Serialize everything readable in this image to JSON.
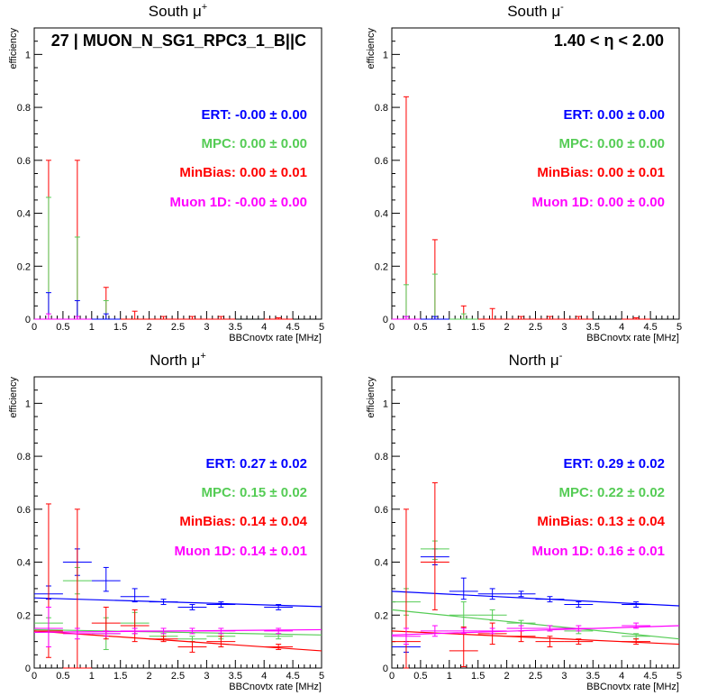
{
  "colors": {
    "ERT": "#0000ff",
    "MPC": "#55cc55",
    "MinBias": "#ff0000",
    "Muon 1D": "#ff00ff"
  },
  "chart_data": [
    {
      "type": "scatter",
      "title": "South μ⁺",
      "xlabel": "BBCnovtx rate [MHz]",
      "ylabel": "efficiency",
      "xlim": [
        0,
        5
      ],
      "ylim": [
        0,
        1.1
      ],
      "xticks": [
        "0",
        "0.5",
        "1",
        "1.5",
        "2",
        "2.5",
        "3",
        "3.5",
        "4",
        "4.5",
        "5"
      ],
      "yticks": [
        "0",
        "0.2",
        "0.4",
        "0.6",
        "0.8",
        "1"
      ],
      "annotation": "27 | MUON_N_SG1_RPC3_1_B||C",
      "fit_labels": [
        {
          "series": "ERT",
          "text": "ERT: -0.00 ± 0.00"
        },
        {
          "series": "MPC",
          "text": "MPC: 0.00 ± 0.00"
        },
        {
          "series": "MinBias",
          "text": "MinBias: 0.00 ± 0.01"
        },
        {
          "series": "Muon 1D",
          "text": "Muon 1D: -0.00 ± 0.00"
        }
      ],
      "series": [
        {
          "name": "MinBias",
          "points": [
            [
              0.25,
              0.0,
              0.0,
              0.6
            ],
            [
              0.75,
              0.0,
              0.0,
              0.6
            ],
            [
              1.25,
              0.0,
              0.0,
              0.12
            ],
            [
              1.75,
              0.0,
              0.0,
              0.03
            ],
            [
              2.25,
              0.0,
              0.0,
              0.01
            ],
            [
              2.75,
              0.0,
              0.0,
              0.01
            ],
            [
              3.25,
              0.0,
              0.0,
              0.01
            ],
            [
              4.25,
              0.0,
              0.0,
              0.005
            ]
          ]
        },
        {
          "name": "MPC",
          "points": [
            [
              0.25,
              0.0,
              0.0,
              0.46
            ],
            [
              0.75,
              0.0,
              0.0,
              0.31
            ],
            [
              1.25,
              0.0,
              0.0,
              0.07
            ]
          ]
        },
        {
          "name": "ERT",
          "points": [
            [
              0.25,
              0.0,
              0.0,
              0.1
            ],
            [
              0.75,
              0.0,
              0.0,
              0.07
            ],
            [
              1.25,
              0.0,
              0.0,
              0.02
            ]
          ]
        },
        {
          "name": "Muon 1D",
          "points": [
            [
              0.25,
              0.0,
              0.0,
              0.02
            ],
            [
              0.75,
              0.0,
              0.0,
              0.01
            ]
          ]
        }
      ]
    },
    {
      "type": "scatter",
      "title": "South μ⁻",
      "xlabel": "BBCnovtx rate [MHz]",
      "ylabel": "efficiency",
      "xlim": [
        0,
        5
      ],
      "ylim": [
        0,
        1.1
      ],
      "xticks": [
        "0",
        "0.5",
        "1",
        "1.5",
        "2",
        "2.5",
        "3",
        "3.5",
        "4",
        "4.5",
        "5"
      ],
      "yticks": [
        "0",
        "0.2",
        "0.4",
        "0.6",
        "0.8",
        "1"
      ],
      "annotation": "1.40 < η < 2.00",
      "fit_labels": [
        {
          "series": "ERT",
          "text": "ERT: 0.00 ± 0.00"
        },
        {
          "series": "MPC",
          "text": "MPC: 0.00 ± 0.00"
        },
        {
          "series": "MinBias",
          "text": "MinBias: 0.00 ± 0.01"
        },
        {
          "series": "Muon 1D",
          "text": "Muon 1D: 0.00 ± 0.00"
        }
      ],
      "series": [
        {
          "name": "MinBias",
          "points": [
            [
              0.25,
              0.0,
              0.0,
              0.84
            ],
            [
              0.75,
              0.0,
              0.0,
              0.3
            ],
            [
              1.25,
              0.0,
              0.0,
              0.05
            ],
            [
              1.75,
              0.0,
              0.0,
              0.04
            ],
            [
              2.25,
              0.0,
              0.0,
              0.01
            ],
            [
              2.75,
              0.0,
              0.0,
              0.01
            ],
            [
              3.25,
              0.0,
              0.0,
              0.01
            ],
            [
              4.25,
              0.0,
              0.0,
              0.005
            ]
          ]
        },
        {
          "name": "MPC",
          "points": [
            [
              0.25,
              0.0,
              0.0,
              0.13
            ],
            [
              0.75,
              0.0,
              0.0,
              0.17
            ],
            [
              1.25,
              0.0,
              0.0,
              0.02
            ]
          ]
        },
        {
          "name": "ERT",
          "points": [
            [
              0.25,
              0.0,
              0.0,
              0.01
            ],
            [
              0.75,
              0.0,
              0.0,
              0.01
            ]
          ]
        },
        {
          "name": "Muon 1D",
          "points": [
            [
              0.25,
              0.0,
              0.0,
              0.01
            ]
          ]
        }
      ]
    },
    {
      "type": "scatter",
      "title": "North μ⁺",
      "xlabel": "BBCnovtx rate [MHz]",
      "ylabel": "efficiency",
      "xlim": [
        0,
        5
      ],
      "ylim": [
        0,
        1.1
      ],
      "xticks": [
        "0",
        "0.5",
        "1",
        "1.5",
        "2",
        "2.5",
        "3",
        "3.5",
        "4",
        "4.5",
        "5"
      ],
      "yticks": [
        "0",
        "0.2",
        "0.4",
        "0.6",
        "0.8",
        "1"
      ],
      "annotation": "",
      "fit_labels": [
        {
          "series": "ERT",
          "text": "ERT: 0.27 ± 0.02"
        },
        {
          "series": "MPC",
          "text": "MPC: 0.15 ± 0.02"
        },
        {
          "series": "MinBias",
          "text": "MinBias: 0.14 ± 0.04"
        },
        {
          "series": "Muon 1D",
          "text": "Muon 1D: 0.14 ± 0.01"
        }
      ],
      "fit_lines": [
        {
          "series": "ERT",
          "y0": 0.265,
          "y1": 0.232
        },
        {
          "series": "MPC",
          "y0": 0.145,
          "y1": 0.125
        },
        {
          "series": "MinBias",
          "y0": 0.14,
          "y1": 0.065
        },
        {
          "series": "Muon 1D",
          "y0": 0.135,
          "y1": 0.145
        }
      ],
      "series": [
        {
          "name": "ERT",
          "points": [
            [
              0.25,
              0.28,
              0.02,
              0.03
            ],
            [
              0.75,
              0.4,
              0.05,
              0.05
            ],
            [
              1.25,
              0.33,
              0.04,
              0.05
            ],
            [
              1.75,
              0.27,
              0.02,
              0.03
            ],
            [
              2.25,
              0.25,
              0.01,
              0.01
            ],
            [
              2.75,
              0.23,
              0.01,
              0.01
            ],
            [
              3.25,
              0.24,
              0.01,
              0.01
            ],
            [
              4.25,
              0.23,
              0.01,
              0.01
            ]
          ]
        },
        {
          "name": "MPC",
          "points": [
            [
              0.25,
              0.17,
              0.02,
              0.02
            ],
            [
              0.75,
              0.33,
              0.05,
              0.05
            ],
            [
              1.25,
              0.13,
              0.06,
              0.06
            ],
            [
              1.75,
              0.17,
              0.04,
              0.04
            ],
            [
              2.25,
              0.12,
              0.01,
              0.01
            ],
            [
              2.75,
              0.11,
              0.01,
              0.01
            ],
            [
              3.25,
              0.12,
              0.01,
              0.01
            ],
            [
              4.25,
              0.12,
              0.01,
              0.01
            ]
          ]
        },
        {
          "name": "MinBias",
          "points": [
            [
              0.25,
              0.14,
              0.1,
              0.48
            ],
            [
              0.75,
              0.0,
              0.0,
              0.6
            ],
            [
              1.25,
              0.17,
              0.06,
              0.06
            ],
            [
              1.75,
              0.16,
              0.06,
              0.06
            ],
            [
              2.25,
              0.11,
              0.01,
              0.01
            ],
            [
              2.75,
              0.08,
              0.02,
              0.02
            ],
            [
              3.25,
              0.1,
              0.02,
              0.02
            ],
            [
              4.25,
              0.08,
              0.01,
              0.01
            ]
          ]
        },
        {
          "name": "Muon 1D",
          "points": [
            [
              0.25,
              0.15,
              0.07,
              0.08
            ],
            [
              0.75,
              0.13,
              0.02,
              0.02
            ],
            [
              1.25,
              0.13,
              0.01,
              0.01
            ],
            [
              1.75,
              0.14,
              0.01,
              0.01
            ],
            [
              2.25,
              0.14,
              0.01,
              0.01
            ],
            [
              2.75,
              0.14,
              0.01,
              0.01
            ],
            [
              3.25,
              0.14,
              0.01,
              0.01
            ],
            [
              4.25,
              0.14,
              0.01,
              0.01
            ]
          ]
        }
      ]
    },
    {
      "type": "scatter",
      "title": "North μ⁻",
      "xlabel": "BBCnovtx rate [MHz]",
      "ylabel": "efficiency",
      "xlim": [
        0,
        5
      ],
      "ylim": [
        0,
        1.1
      ],
      "xticks": [
        "0",
        "0.5",
        "1",
        "1.5",
        "2",
        "2.5",
        "3",
        "3.5",
        "4",
        "4.5",
        "5"
      ],
      "yticks": [
        "0",
        "0.2",
        "0.4",
        "0.6",
        "0.8",
        "1"
      ],
      "annotation": "",
      "fit_labels": [
        {
          "series": "ERT",
          "text": "ERT: 0.29 ± 0.02"
        },
        {
          "series": "MPC",
          "text": "MPC: 0.22 ± 0.02"
        },
        {
          "series": "MinBias",
          "text": "MinBias: 0.13 ± 0.04"
        },
        {
          "series": "Muon 1D",
          "text": "Muon 1D: 0.16 ± 0.01"
        }
      ],
      "fit_lines": [
        {
          "series": "ERT",
          "y0": 0.29,
          "y1": 0.235
        },
        {
          "series": "MPC",
          "y0": 0.22,
          "y1": 0.11
        },
        {
          "series": "MinBias",
          "y0": 0.14,
          "y1": 0.09
        },
        {
          "series": "Muon 1D",
          "y0": 0.125,
          "y1": 0.16
        }
      ],
      "series": [
        {
          "name": "ERT",
          "points": [
            [
              0.25,
              0.08,
              0.02,
              0.02
            ],
            [
              0.75,
              0.42,
              0.03,
              0.03
            ],
            [
              1.25,
              0.29,
              0.03,
              0.05
            ],
            [
              1.75,
              0.28,
              0.02,
              0.02
            ],
            [
              2.25,
              0.28,
              0.01,
              0.01
            ],
            [
              2.75,
              0.26,
              0.01,
              0.01
            ],
            [
              3.25,
              0.24,
              0.01,
              0.01
            ],
            [
              4.25,
              0.24,
              0.01,
              0.01
            ]
          ]
        },
        {
          "name": "MPC",
          "points": [
            [
              0.25,
              0.25,
              0.05,
              0.05
            ],
            [
              0.75,
              0.45,
              0.04,
              0.03
            ],
            [
              1.25,
              0.2,
              0.05,
              0.05
            ],
            [
              1.75,
              0.2,
              0.02,
              0.02
            ],
            [
              2.25,
              0.17,
              0.01,
              0.01
            ],
            [
              2.75,
              0.15,
              0.01,
              0.01
            ],
            [
              3.25,
              0.14,
              0.01,
              0.01
            ],
            [
              4.25,
              0.12,
              0.01,
              0.01
            ]
          ]
        },
        {
          "name": "MinBias",
          "points": [
            [
              0.25,
              0.1,
              0.1,
              0.5
            ],
            [
              0.75,
              0.4,
              0.18,
              0.3
            ],
            [
              1.25,
              0.065,
              0.06,
              0.09
            ],
            [
              1.75,
              0.13,
              0.04,
              0.04
            ],
            [
              2.25,
              0.12,
              0.02,
              0.02
            ],
            [
              2.75,
              0.1,
              0.02,
              0.02
            ],
            [
              3.25,
              0.1,
              0.01,
              0.01
            ],
            [
              4.25,
              0.1,
              0.01,
              0.01
            ]
          ]
        },
        {
          "name": "Muon 1D",
          "points": [
            [
              0.25,
              0.12,
              0.03,
              0.03
            ],
            [
              0.75,
              0.14,
              0.02,
              0.02
            ],
            [
              1.25,
              0.14,
              0.01,
              0.01
            ],
            [
              1.75,
              0.14,
              0.01,
              0.01
            ],
            [
              2.25,
              0.15,
              0.01,
              0.01
            ],
            [
              2.75,
              0.15,
              0.01,
              0.01
            ],
            [
              3.25,
              0.15,
              0.01,
              0.01
            ],
            [
              4.25,
              0.16,
              0.01,
              0.01
            ]
          ]
        }
      ]
    }
  ]
}
